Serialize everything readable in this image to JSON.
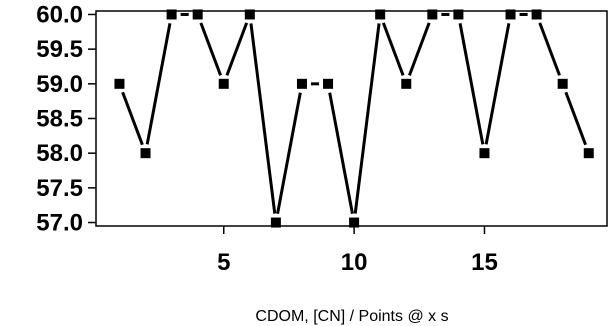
{
  "chart_data": {
    "type": "line",
    "title": "",
    "xlabel": "CDOM, [CN] / Points @ x s",
    "ylabel": "",
    "x": [
      1,
      2,
      3,
      4,
      5,
      6,
      7,
      8,
      9,
      10,
      11,
      12,
      13,
      14,
      15,
      16,
      17,
      18,
      19
    ],
    "series": [
      {
        "values": [
          59.0,
          58.0,
          60.0,
          60.0,
          59.0,
          60.0,
          57.0,
          59.0,
          59.0,
          57.0,
          60.0,
          59.0,
          60.0,
          60.0,
          58.0,
          60.0,
          60.0,
          59.0,
          58.0
        ]
      }
    ],
    "xlim": [
      0.1,
      19.7
    ],
    "ylim": [
      56.95,
      60.05
    ],
    "x_ticks": [
      5,
      10,
      15
    ],
    "x_tick_labels": [
      "5",
      "10",
      "15"
    ],
    "y_ticks": [
      57.0,
      57.5,
      58.0,
      58.5,
      59.0,
      59.5,
      60.0
    ],
    "y_tick_labels": [
      "57.0",
      "57.5",
      "58.0",
      "58.5",
      "59.0",
      "59.5",
      "60.0"
    ],
    "grid": false,
    "legend": "none",
    "style": {
      "line_color": "#000000",
      "marker_color": "#000000",
      "marker": "square"
    }
  }
}
